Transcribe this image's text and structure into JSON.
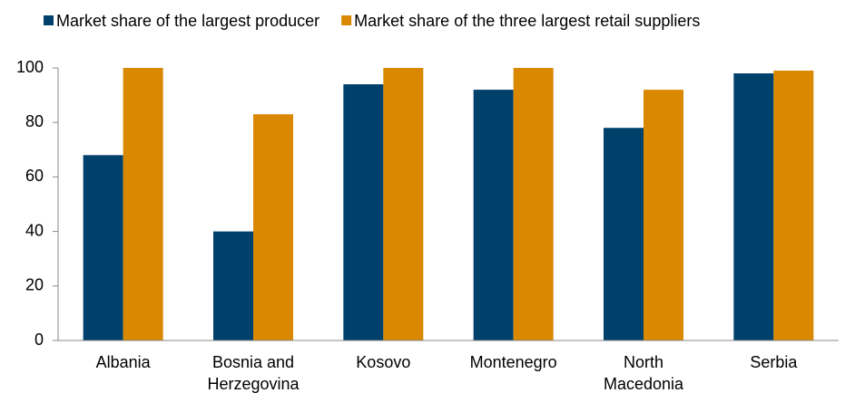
{
  "chart_data": {
    "type": "bar",
    "categories": [
      "Albania",
      "Bosnia and Herzegovina",
      "Kosovo",
      "Montenegro",
      "North Macedonia",
      "Serbia"
    ],
    "series": [
      {
        "name": "Market share of the largest producer",
        "color": "#00416b",
        "values": [
          68,
          40,
          94,
          92,
          78,
          98
        ]
      },
      {
        "name": "Market share of the three largest retail suppliers",
        "color": "#d98800",
        "values": [
          100,
          83,
          100,
          100,
          92,
          99
        ]
      }
    ],
    "ylim": [
      0,
      100
    ],
    "yticks": [
      0,
      20,
      40,
      60,
      80,
      100
    ],
    "legend": "top"
  }
}
